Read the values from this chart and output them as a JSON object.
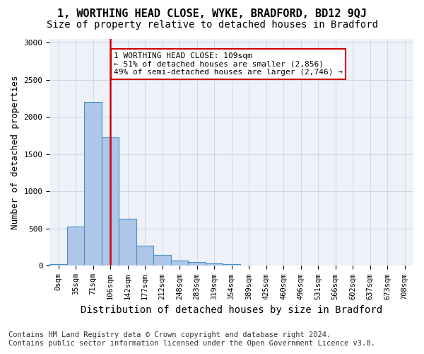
{
  "title1": "1, WORTHING HEAD CLOSE, WYKE, BRADFORD, BD12 9QJ",
  "title2": "Size of property relative to detached houses in Bradford",
  "xlabel": "Distribution of detached houses by size in Bradford",
  "ylabel": "Number of detached properties",
  "footnote": "Contains HM Land Registry data © Crown copyright and database right 2024.\nContains public sector information licensed under the Open Government Licence v3.0.",
  "bin_labels": [
    "0sqm",
    "35sqm",
    "71sqm",
    "106sqm",
    "142sqm",
    "177sqm",
    "212sqm",
    "248sqm",
    "283sqm",
    "319sqm",
    "354sqm",
    "389sqm",
    "425sqm",
    "460sqm",
    "496sqm",
    "531sqm",
    "566sqm",
    "602sqm",
    "637sqm",
    "673sqm",
    "708sqm"
  ],
  "bar_values": [
    25,
    525,
    2200,
    1725,
    635,
    270,
    145,
    70,
    55,
    35,
    25,
    0,
    0,
    0,
    0,
    0,
    0,
    0,
    0,
    0,
    0
  ],
  "bar_color": "#aec6e8",
  "bar_edge_color": "#4a90c4",
  "vline_x_index": 3,
  "vline_color": "#cc0000",
  "property_size": "109sqm",
  "annotation_text": "1 WORTHING HEAD CLOSE: 109sqm\n← 51% of detached houses are smaller (2,856)\n49% of semi-detached houses are larger (2,746) →",
  "annotation_box_color": "#ffffff",
  "annotation_border_color": "#cc0000",
  "ylim": [
    0,
    3050
  ],
  "yticks": [
    0,
    500,
    1000,
    1500,
    2000,
    2500,
    3000
  ],
  "grid_color": "#d0d8e8",
  "bg_color": "#eef2f8",
  "title1_fontsize": 11,
  "title2_fontsize": 10,
  "xlabel_fontsize": 10,
  "ylabel_fontsize": 9,
  "footnote_fontsize": 7.5
}
